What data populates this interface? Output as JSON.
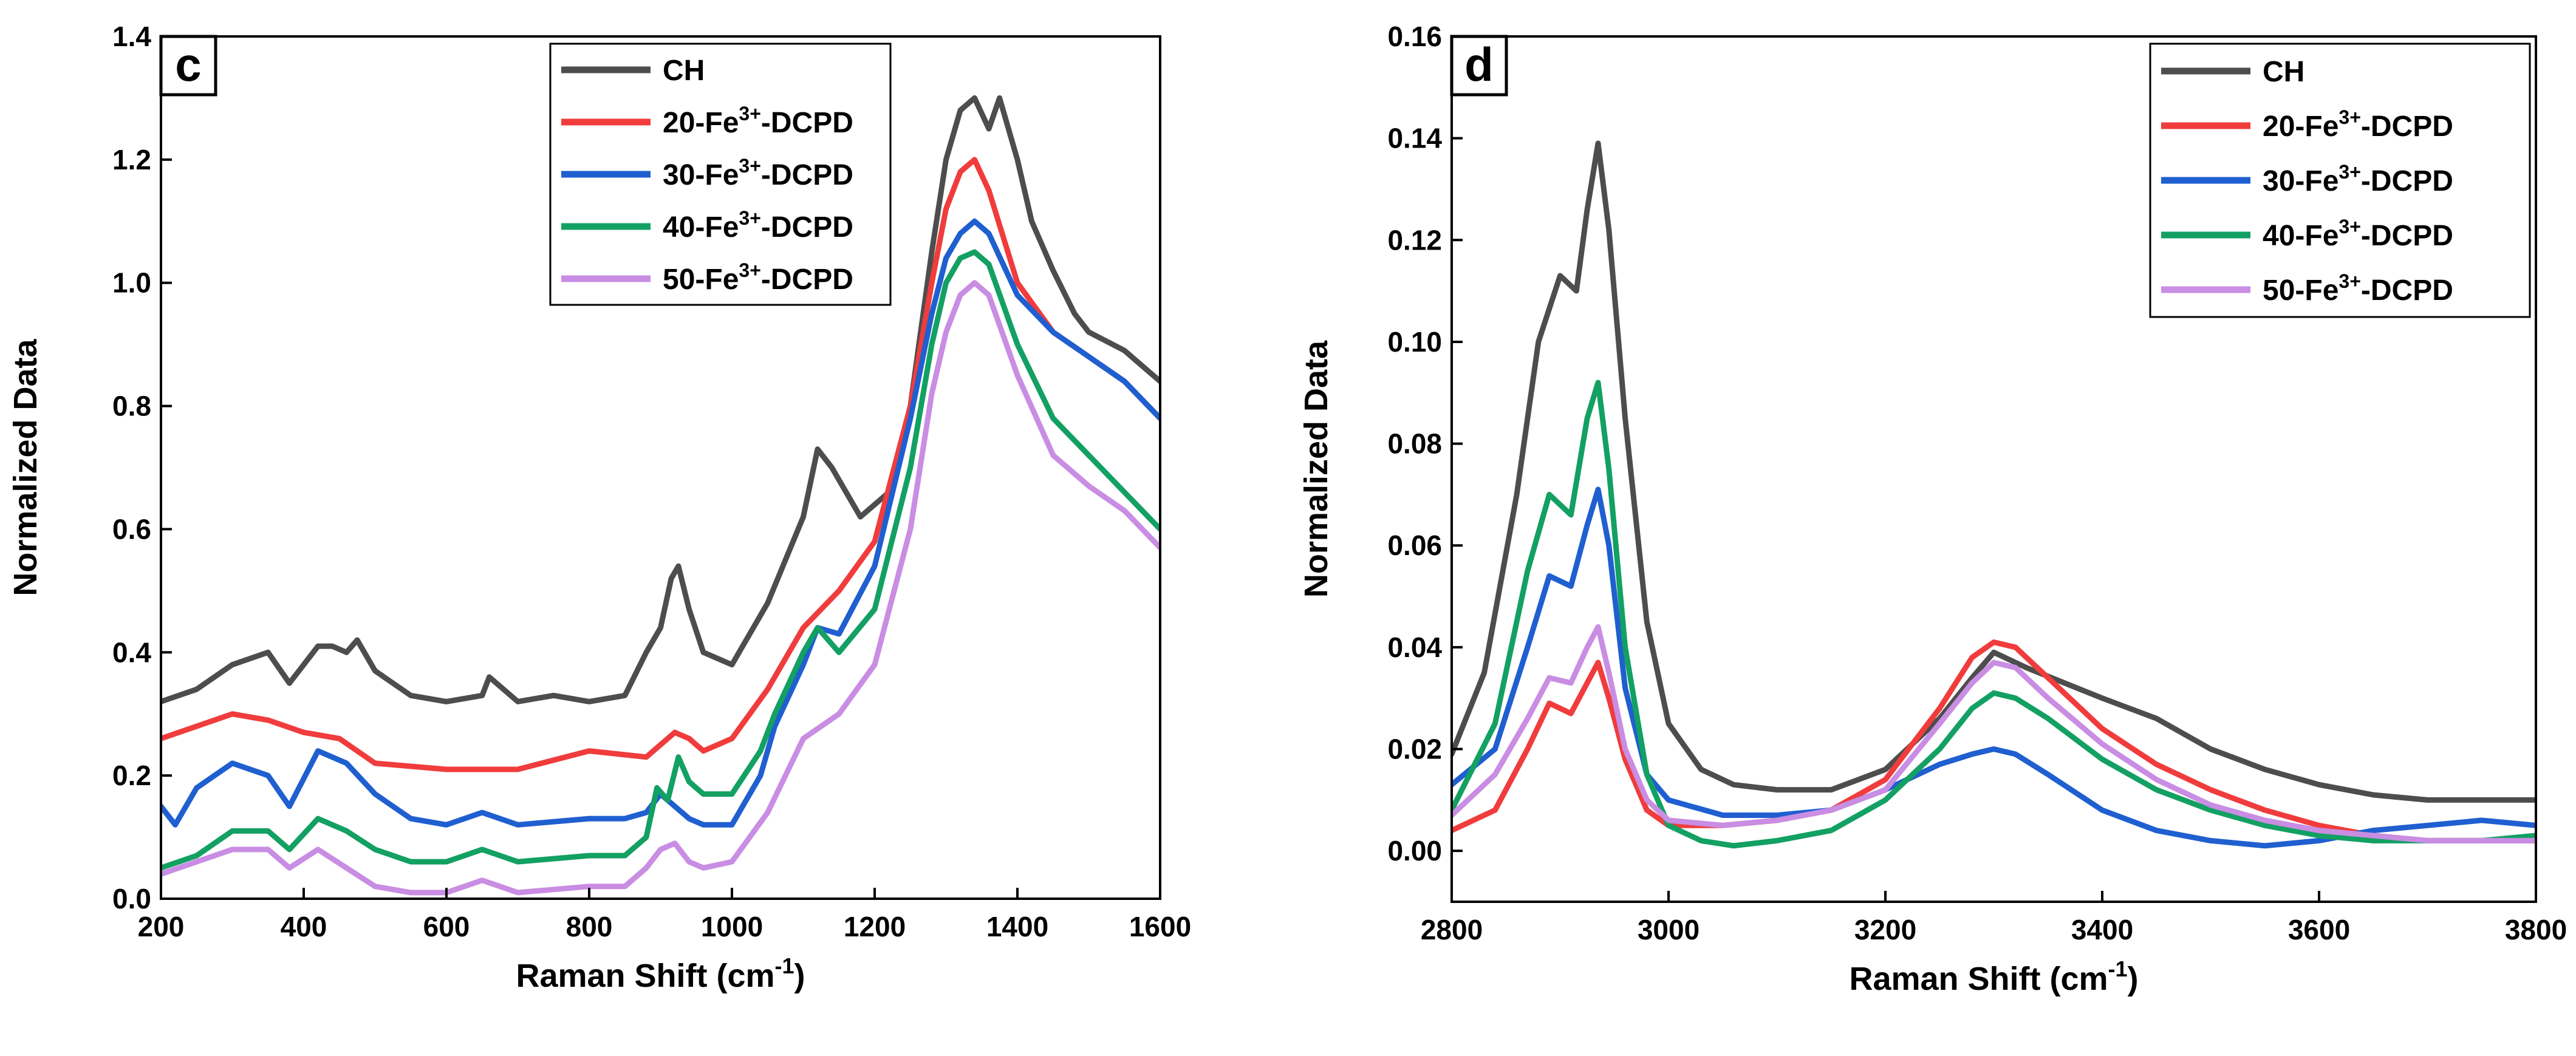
{
  "colors": {
    "CH": "#4d4d4d",
    "20-Fe3+-DCPD": "#f03c3c",
    "30-Fe3+-DCPD": "#1f5fd0",
    "40-Fe3+-DCPD": "#13a063",
    "50-Fe3+-DCPD": "#c98de3"
  },
  "chart_data": [
    {
      "type": "line",
      "panel_label": "c",
      "xlabel": "Raman Shift (cm",
      "xlabel_sup": "-1",
      "xlabel_end": ")",
      "ylabel": "Normalized Data",
      "xlim": [
        200,
        1600
      ],
      "ylim": [
        0,
        1.4
      ],
      "xticks": [
        "200",
        "400",
        "600",
        "800",
        "1000",
        "1200",
        "1400",
        "1600"
      ],
      "yticks": [
        "0.0",
        "0.2",
        "0.4",
        "0.6",
        "0.8",
        "1.0",
        "1.2",
        "1.4"
      ],
      "legend_position": "top-center",
      "series": [
        {
          "name": "CH",
          "legend": {
            "pre": "CH",
            "sup": "",
            "post": ""
          },
          "color_key": "CH",
          "x": [
            200,
            250,
            300,
            350,
            380,
            400,
            420,
            440,
            460,
            475,
            500,
            550,
            600,
            650,
            660,
            700,
            750,
            800,
            850,
            880,
            900,
            915,
            925,
            940,
            960,
            1000,
            1050,
            1100,
            1120,
            1140,
            1180,
            1220,
            1250,
            1280,
            1300,
            1320,
            1340,
            1360,
            1375,
            1400,
            1420,
            1450,
            1480,
            1500,
            1550,
            1600
          ],
          "y": [
            0.32,
            0.34,
            0.38,
            0.4,
            0.35,
            0.38,
            0.41,
            0.41,
            0.4,
            0.42,
            0.37,
            0.33,
            0.32,
            0.33,
            0.36,
            0.32,
            0.33,
            0.32,
            0.33,
            0.4,
            0.44,
            0.52,
            0.54,
            0.47,
            0.4,
            0.38,
            0.48,
            0.62,
            0.73,
            0.7,
            0.62,
            0.66,
            0.8,
            1.05,
            1.2,
            1.28,
            1.3,
            1.25,
            1.3,
            1.2,
            1.1,
            1.02,
            0.95,
            0.92,
            0.89,
            0.84
          ]
        },
        {
          "name": "20-Fe3+-DCPD",
          "legend": {
            "pre": "20-Fe",
            "sup": "3+",
            "post": "-DCPD"
          },
          "color_key": "20-Fe3+-DCPD",
          "x": [
            200,
            250,
            300,
            350,
            400,
            450,
            500,
            600,
            700,
            800,
            880,
            920,
            940,
            960,
            1000,
            1050,
            1100,
            1150,
            1200,
            1250,
            1280,
            1300,
            1320,
            1340,
            1360,
            1400,
            1450,
            1500,
            1550,
            1600
          ],
          "y": [
            0.26,
            0.28,
            0.3,
            0.29,
            0.27,
            0.26,
            0.22,
            0.21,
            0.21,
            0.24,
            0.23,
            0.27,
            0.26,
            0.24,
            0.26,
            0.34,
            0.44,
            0.5,
            0.58,
            0.8,
            1.0,
            1.12,
            1.18,
            1.2,
            1.15,
            1.0,
            0.92,
            0.88,
            0.84,
            0.78
          ]
        },
        {
          "name": "30-Fe3+-DCPD",
          "legend": {
            "pre": "30-Fe",
            "sup": "3+",
            "post": "-DCPD"
          },
          "color_key": "30-Fe3+-DCPD",
          "x": [
            200,
            220,
            250,
            300,
            350,
            380,
            420,
            460,
            500,
            550,
            600,
            650,
            700,
            800,
            850,
            880,
            900,
            920,
            940,
            960,
            1000,
            1040,
            1060,
            1100,
            1120,
            1150,
            1200,
            1250,
            1280,
            1300,
            1320,
            1340,
            1360,
            1400,
            1450,
            1500,
            1550,
            1600
          ],
          "y": [
            0.15,
            0.12,
            0.18,
            0.22,
            0.2,
            0.15,
            0.24,
            0.22,
            0.17,
            0.13,
            0.12,
            0.14,
            0.12,
            0.13,
            0.13,
            0.14,
            0.17,
            0.15,
            0.13,
            0.12,
            0.12,
            0.2,
            0.28,
            0.38,
            0.44,
            0.43,
            0.54,
            0.78,
            0.95,
            1.04,
            1.08,
            1.1,
            1.08,
            0.98,
            0.92,
            0.88,
            0.84,
            0.78
          ]
        },
        {
          "name": "40-Fe3+-DCPD",
          "legend": {
            "pre": "40-Fe",
            "sup": "3+",
            "post": "-DCPD"
          },
          "color_key": "40-Fe3+-DCPD",
          "x": [
            200,
            250,
            300,
            350,
            380,
            420,
            460,
            500,
            550,
            600,
            650,
            700,
            800,
            850,
            880,
            895,
            910,
            925,
            940,
            960,
            1000,
            1040,
            1060,
            1100,
            1120,
            1150,
            1200,
            1250,
            1280,
            1300,
            1320,
            1340,
            1360,
            1400,
            1450,
            1500,
            1550,
            1600
          ],
          "y": [
            0.05,
            0.07,
            0.11,
            0.11,
            0.08,
            0.13,
            0.11,
            0.08,
            0.06,
            0.06,
            0.08,
            0.06,
            0.07,
            0.07,
            0.1,
            0.18,
            0.16,
            0.23,
            0.19,
            0.17,
            0.17,
            0.24,
            0.3,
            0.4,
            0.44,
            0.4,
            0.47,
            0.7,
            0.9,
            1.0,
            1.04,
            1.05,
            1.03,
            0.9,
            0.78,
            0.72,
            0.66,
            0.6
          ]
        },
        {
          "name": "50-Fe3+-DCPD",
          "legend": {
            "pre": "50-Fe",
            "sup": "3+",
            "post": "-DCPD"
          },
          "color_key": "50-Fe3+-DCPD",
          "x": [
            200,
            250,
            300,
            350,
            380,
            420,
            460,
            500,
            550,
            600,
            650,
            700,
            800,
            850,
            880,
            900,
            920,
            940,
            960,
            1000,
            1050,
            1100,
            1150,
            1200,
            1250,
            1280,
            1300,
            1320,
            1340,
            1360,
            1400,
            1450,
            1500,
            1550,
            1600
          ],
          "y": [
            0.04,
            0.06,
            0.08,
            0.08,
            0.05,
            0.08,
            0.05,
            0.02,
            0.01,
            0.01,
            0.03,
            0.01,
            0.02,
            0.02,
            0.05,
            0.08,
            0.09,
            0.06,
            0.05,
            0.06,
            0.14,
            0.26,
            0.3,
            0.38,
            0.6,
            0.82,
            0.92,
            0.98,
            1.0,
            0.98,
            0.85,
            0.72,
            0.67,
            0.63,
            0.57
          ]
        }
      ]
    },
    {
      "type": "line",
      "panel_label": "d",
      "xlabel": "Raman Shift (cm",
      "xlabel_sup": "-1",
      "xlabel_end": ")",
      "ylabel": "Normalized Data",
      "xlim": [
        2800,
        3800
      ],
      "ylim": [
        -0.01,
        0.16
      ],
      "xticks": [
        "2800",
        "3000",
        "3200",
        "3400",
        "3600",
        "3800"
      ],
      "yticks": [
        "0.00",
        "0.02",
        "0.04",
        "0.06",
        "0.08",
        "0.10",
        "0.12",
        "0.14",
        "0.16"
      ],
      "legend_position": "top-right",
      "series": [
        {
          "name": "CH",
          "legend": {
            "pre": "CH",
            "sup": "",
            "post": ""
          },
          "color_key": "CH",
          "x": [
            2800,
            2830,
            2860,
            2880,
            2900,
            2915,
            2925,
            2935,
            2945,
            2960,
            2980,
            3000,
            3030,
            3060,
            3100,
            3150,
            3200,
            3250,
            3280,
            3300,
            3330,
            3400,
            3450,
            3500,
            3550,
            3600,
            3650,
            3700,
            3750,
            3800
          ],
          "y": [
            0.019,
            0.035,
            0.07,
            0.1,
            0.113,
            0.11,
            0.126,
            0.139,
            0.122,
            0.085,
            0.045,
            0.025,
            0.016,
            0.013,
            0.012,
            0.012,
            0.016,
            0.026,
            0.034,
            0.039,
            0.036,
            0.03,
            0.026,
            0.02,
            0.016,
            0.013,
            0.011,
            0.01,
            0.01,
            0.01
          ]
        },
        {
          "name": "20-Fe3+-DCPD",
          "legend": {
            "pre": "20-Fe",
            "sup": "3+",
            "post": "-DCPD"
          },
          "color_key": "20-Fe3+-DCPD",
          "x": [
            2800,
            2840,
            2870,
            2890,
            2910,
            2925,
            2935,
            2945,
            2960,
            2980,
            3000,
            3050,
            3100,
            3150,
            3200,
            3250,
            3280,
            3300,
            3320,
            3350,
            3400,
            3450,
            3500,
            3550,
            3600,
            3650,
            3700,
            3750,
            3800
          ],
          "y": [
            0.004,
            0.008,
            0.02,
            0.029,
            0.027,
            0.033,
            0.037,
            0.03,
            0.018,
            0.008,
            0.005,
            0.005,
            0.006,
            0.008,
            0.014,
            0.028,
            0.038,
            0.041,
            0.04,
            0.034,
            0.024,
            0.017,
            0.012,
            0.008,
            0.005,
            0.003,
            0.002,
            0.002,
            0.002
          ]
        },
        {
          "name": "30-Fe3+-DCPD",
          "legend": {
            "pre": "30-Fe",
            "sup": "3+",
            "post": "-DCPD"
          },
          "color_key": "30-Fe3+-DCPD",
          "x": [
            2800,
            2840,
            2870,
            2890,
            2910,
            2925,
            2935,
            2945,
            2960,
            2980,
            3000,
            3050,
            3100,
            3150,
            3200,
            3250,
            3280,
            3300,
            3320,
            3350,
            3400,
            3450,
            3500,
            3550,
            3600,
            3650,
            3700,
            3750,
            3800
          ],
          "y": [
            0.013,
            0.02,
            0.04,
            0.054,
            0.052,
            0.064,
            0.071,
            0.06,
            0.032,
            0.015,
            0.01,
            0.007,
            0.007,
            0.008,
            0.012,
            0.017,
            0.019,
            0.02,
            0.019,
            0.015,
            0.008,
            0.004,
            0.002,
            0.001,
            0.002,
            0.004,
            0.005,
            0.006,
            0.005
          ]
        },
        {
          "name": "40-Fe3+-DCPD",
          "legend": {
            "pre": "40-Fe",
            "sup": "3+",
            "post": "-DCPD"
          },
          "color_key": "40-Fe3+-DCPD",
          "x": [
            2800,
            2840,
            2870,
            2890,
            2910,
            2925,
            2935,
            2945,
            2960,
            2980,
            3000,
            3030,
            3060,
            3100,
            3150,
            3200,
            3250,
            3280,
            3300,
            3320,
            3350,
            3400,
            3450,
            3500,
            3550,
            3600,
            3650,
            3700,
            3750,
            3800
          ],
          "y": [
            0.008,
            0.025,
            0.055,
            0.07,
            0.066,
            0.085,
            0.092,
            0.075,
            0.04,
            0.015,
            0.005,
            0.002,
            0.001,
            0.002,
            0.004,
            0.01,
            0.02,
            0.028,
            0.031,
            0.03,
            0.026,
            0.018,
            0.012,
            0.008,
            0.005,
            0.003,
            0.002,
            0.002,
            0.002,
            0.003
          ]
        },
        {
          "name": "50-Fe3+-DCPD",
          "legend": {
            "pre": "50-Fe",
            "sup": "3+",
            "post": "-DCPD"
          },
          "color_key": "50-Fe3+-DCPD",
          "x": [
            2800,
            2840,
            2870,
            2890,
            2910,
            2925,
            2935,
            2945,
            2960,
            2980,
            3000,
            3050,
            3100,
            3150,
            3200,
            3250,
            3280,
            3300,
            3320,
            3350,
            3400,
            3450,
            3500,
            3550,
            3600,
            3650,
            3700,
            3750,
            3800
          ],
          "y": [
            0.007,
            0.015,
            0.026,
            0.034,
            0.033,
            0.04,
            0.044,
            0.035,
            0.02,
            0.01,
            0.006,
            0.005,
            0.006,
            0.008,
            0.012,
            0.025,
            0.033,
            0.037,
            0.036,
            0.03,
            0.021,
            0.014,
            0.009,
            0.006,
            0.004,
            0.003,
            0.002,
            0.002,
            0.002
          ]
        }
      ]
    }
  ]
}
